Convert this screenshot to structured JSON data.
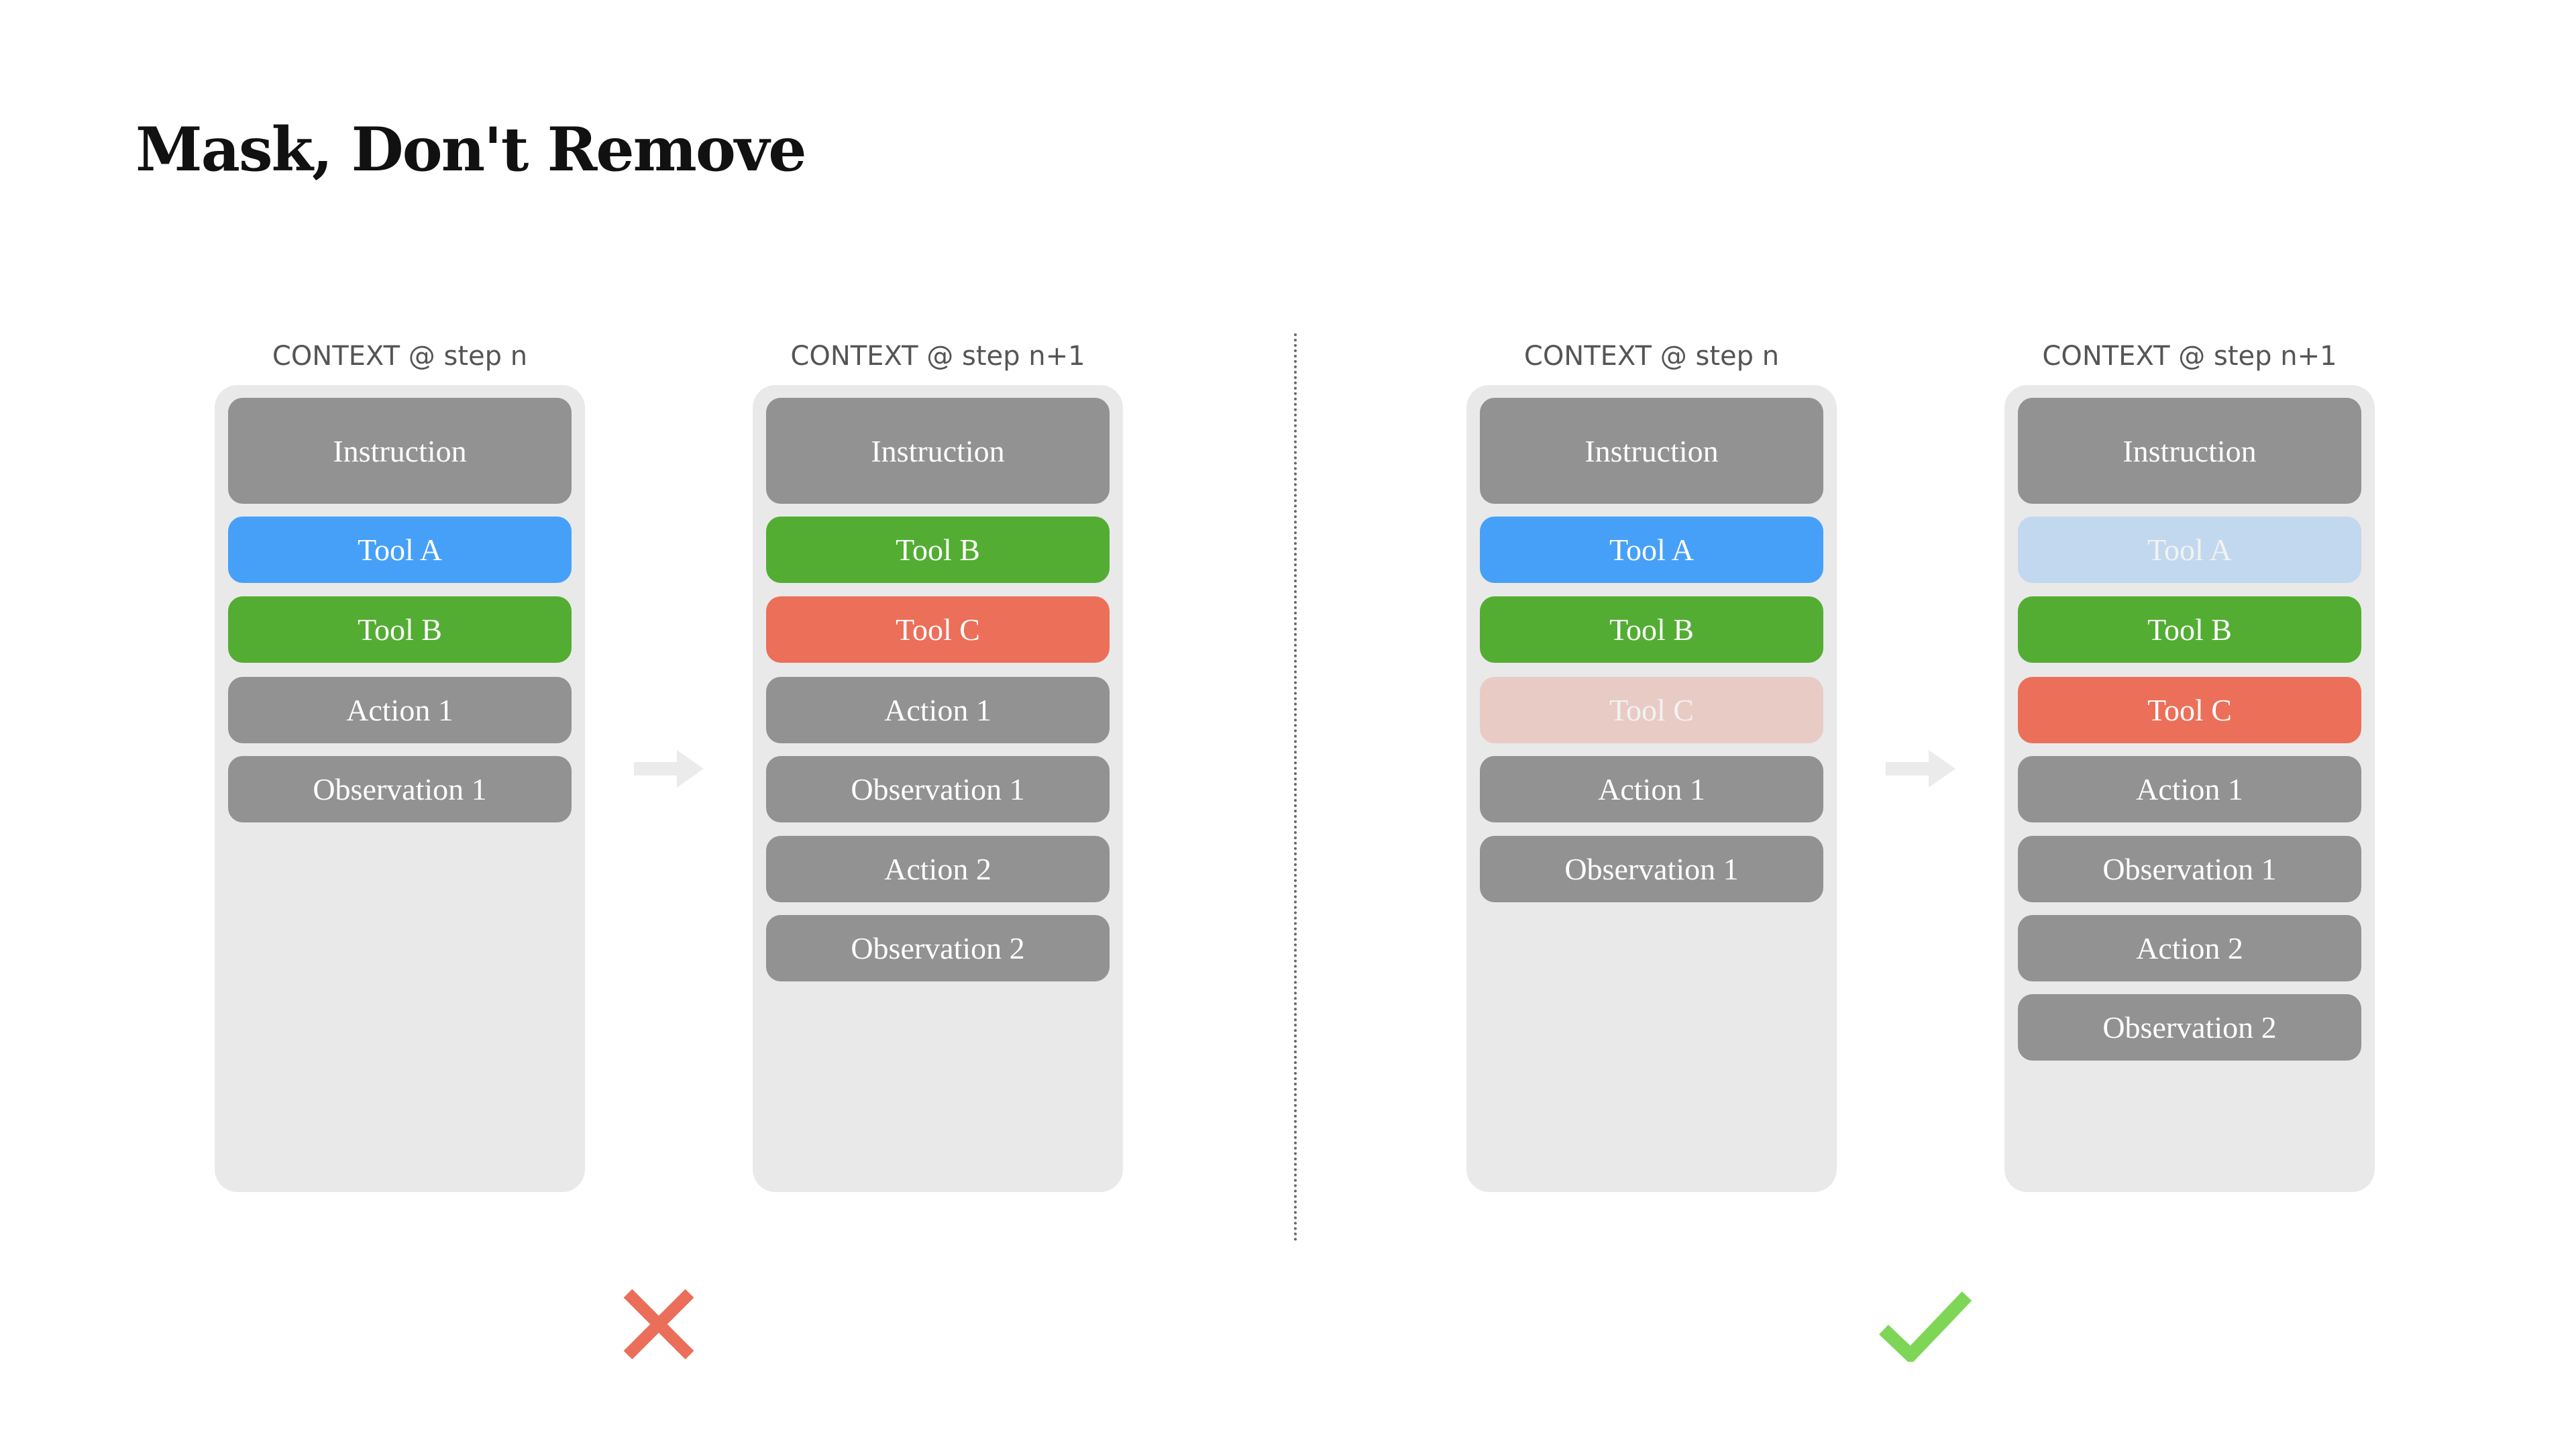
{
  "title": "Mask, Don't Remove",
  "colors": {
    "gray": "#929292",
    "blue": "#47a0f8",
    "green": "#53ad33",
    "red": "#ec6f59",
    "blue_masked": "#c2d8ee",
    "red_masked": "#e9cbc6",
    "panel": "#e9e9e9",
    "arrow": "#ebebeb",
    "cross": "#ea6e5a",
    "check": "#7ed657"
  },
  "columns": [
    {
      "label": "CONTEXT @ step n",
      "blocks": [
        {
          "text": "Instruction",
          "color": "gray"
        },
        {
          "text": "Tool A",
          "color": "blue"
        },
        {
          "text": "Tool B",
          "color": "green"
        },
        {
          "text": "Action 1",
          "color": "gray"
        },
        {
          "text": "Observation 1",
          "color": "gray"
        }
      ]
    },
    {
      "label": "CONTEXT @ step n+1",
      "blocks": [
        {
          "text": "Instruction",
          "color": "gray"
        },
        {
          "text": "Tool B",
          "color": "green"
        },
        {
          "text": "Tool C",
          "color": "red"
        },
        {
          "text": "Action 1",
          "color": "gray"
        },
        {
          "text": "Observation 1",
          "color": "gray"
        },
        {
          "text": "Action 2",
          "color": "gray"
        },
        {
          "text": "Observation 2",
          "color": "gray"
        }
      ]
    },
    {
      "label": "CONTEXT @ step n",
      "blocks": [
        {
          "text": "Instruction",
          "color": "gray"
        },
        {
          "text": "Tool A",
          "color": "blue"
        },
        {
          "text": "Tool B",
          "color": "green"
        },
        {
          "text": "Tool C",
          "color": "red_masked",
          "masked": true
        },
        {
          "text": "Action 1",
          "color": "gray"
        },
        {
          "text": "Observation 1",
          "color": "gray"
        }
      ]
    },
    {
      "label": "CONTEXT @ step n+1",
      "blocks": [
        {
          "text": "Instruction",
          "color": "gray"
        },
        {
          "text": "Tool A",
          "color": "blue_masked",
          "masked": true
        },
        {
          "text": "Tool B",
          "color": "green"
        },
        {
          "text": "Tool C",
          "color": "red"
        },
        {
          "text": "Action 1",
          "color": "gray"
        },
        {
          "text": "Observation 1",
          "color": "gray"
        },
        {
          "text": "Action 2",
          "color": "gray"
        },
        {
          "text": "Observation 2",
          "color": "gray"
        }
      ]
    }
  ],
  "verdicts": [
    {
      "icon": "cross-icon",
      "meaning": "wrong"
    },
    {
      "icon": "check-icon",
      "meaning": "correct"
    }
  ]
}
